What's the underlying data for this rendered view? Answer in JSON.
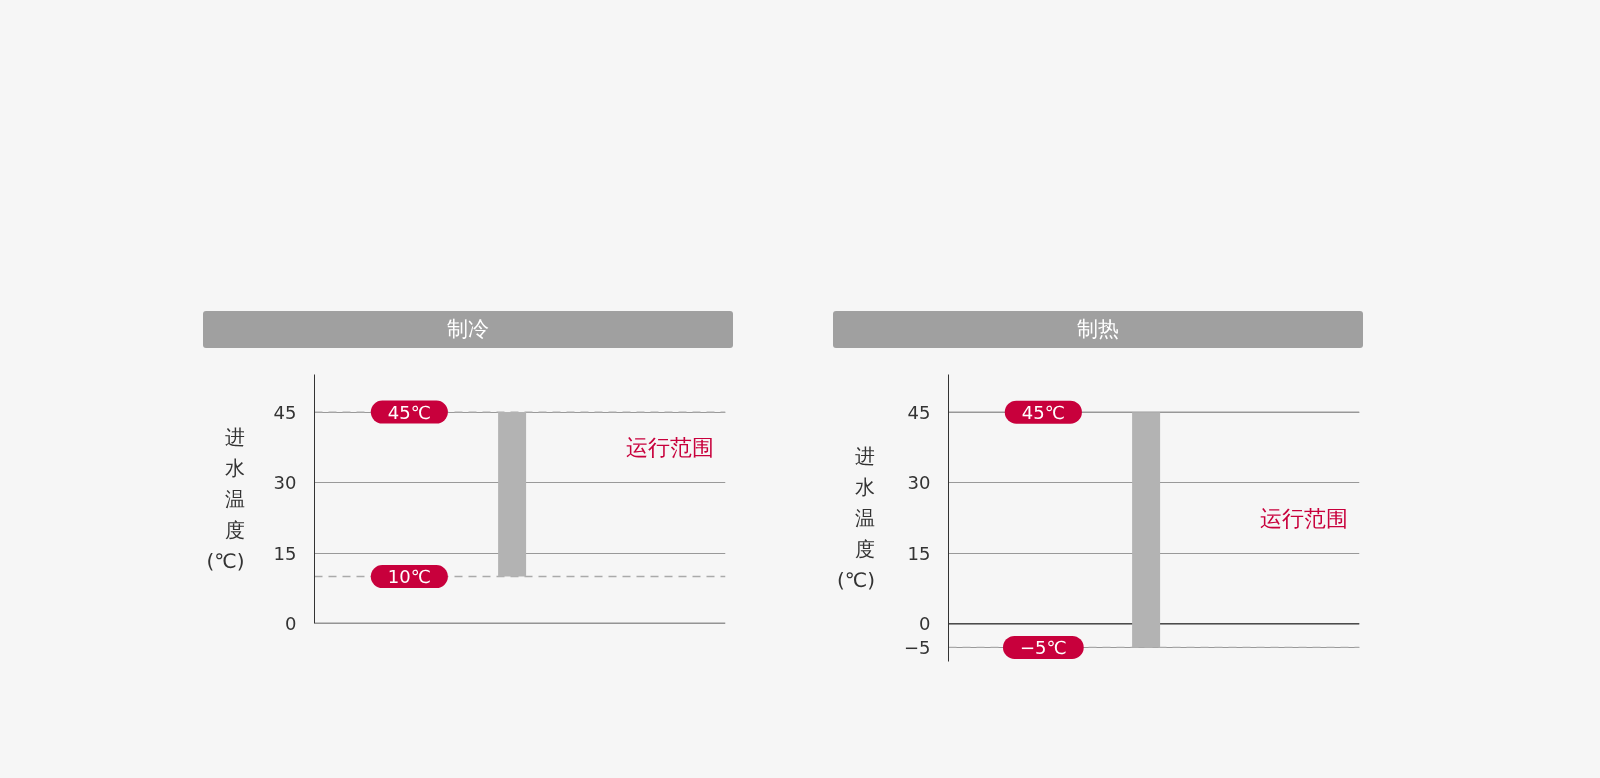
{
  "chart_data": [
    {
      "type": "bar",
      "title": "制冷",
      "ylabel": "进水温度(℃)",
      "categories": [
        null
      ],
      "base": [
        10
      ],
      "values": [
        35
      ],
      "color": "#b3b3b3",
      "ylim": [
        0,
        53
      ],
      "yticks": [
        0,
        15,
        30,
        45
      ],
      "grid": "y",
      "tick_labels": "y",
      "ref_lines": [
        {
          "axis": "y",
          "value": 45,
          "label": "45℃",
          "line_style": "dashed",
          "color": "#aaaaaa"
        },
        {
          "axis": "y",
          "value": 10,
          "label": "10℃",
          "line_style": "dashed",
          "color": "#aaaaaa"
        },
        {
          "axis": "y",
          "value": 0,
          "line_style": "solid",
          "color": "#333333"
        }
      ],
      "annotations": [
        "运行范围"
      ]
    },
    {
      "type": "bar",
      "title": "制热",
      "ylabel": "进水温度(℃)",
      "categories": [
        null
      ],
      "base": [
        -5
      ],
      "values": [
        50
      ],
      "color": "#b3b3b3",
      "ylim": [
        -8,
        53
      ],
      "yticks": [
        {
          "value": -5,
          "label": "−5"
        },
        0,
        15,
        30,
        45
      ],
      "grid": "y",
      "tick_labels": "y",
      "ref_lines": [
        {
          "axis": "y",
          "value": 45,
          "label": "45℃",
          "line_style": "solid",
          "color": "#999999"
        },
        {
          "axis": "y",
          "value": -5,
          "label": "−5℃",
          "line_style": "dashed",
          "color": "#aaaaaa"
        },
        {
          "axis": "y",
          "value": 0,
          "line_style": "solid",
          "color": "#333333"
        }
      ],
      "annotations": [
        "运行范围"
      ]
    }
  ]
}
